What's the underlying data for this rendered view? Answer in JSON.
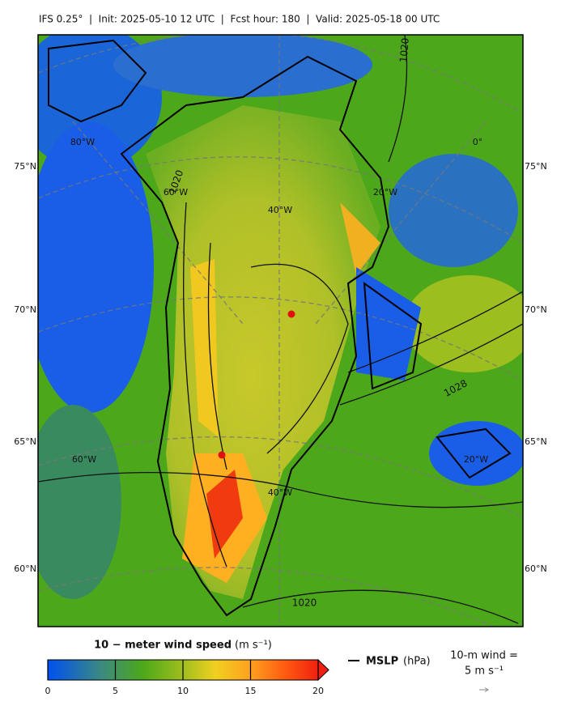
{
  "header": {
    "title": "IFS 0.25°  |  Init: 2025-05-10 12 UTC  |  Fcst hour: 180  |  Valid: 2025-05-18 00 UTC"
  },
  "map": {
    "lat_labels": [
      "75°N",
      "70°N",
      "65°N",
      "60°N"
    ],
    "lon_labels": [
      "80°W",
      "0°",
      "60°W",
      "40°W",
      "20°W",
      "60°W",
      "20°W",
      "40°W"
    ],
    "contour_labels": [
      "1020",
      "1028",
      "1020",
      "1020"
    ]
  },
  "colorbar": {
    "label": "10 − meter wind speed",
    "unit": "(m s⁻¹)",
    "range": [
      0,
      20
    ],
    "ticks": [
      0,
      5,
      10,
      15,
      20
    ]
  },
  "legend": {
    "mslp_label": "MSLP",
    "mslp_unit": "(hPa)",
    "wind_line1": "10-m wind =",
    "wind_line2": "5 m s⁻¹"
  }
}
